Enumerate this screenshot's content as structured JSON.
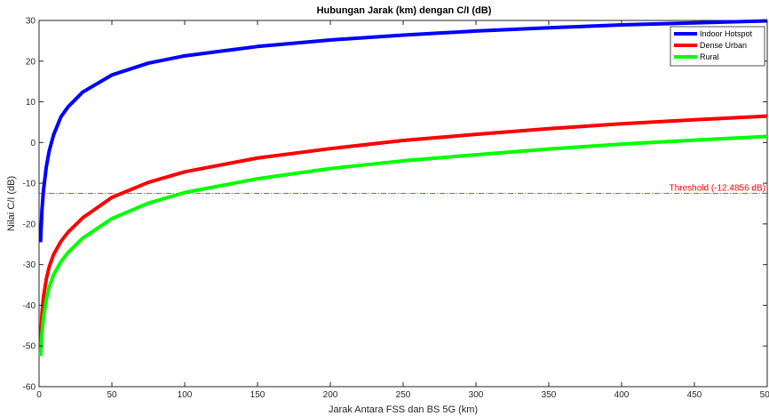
{
  "chart_data": {
    "type": "line",
    "title": "Hubungan Jarak (km) dengan C/I (dB)",
    "xlabel": "Jarak Antara FSS dan BS 5G (km)",
    "ylabel": "Nilai C/I (dB)",
    "xlim": [
      0,
      500
    ],
    "ylim": [
      -60,
      30
    ],
    "xticks": [
      0,
      50,
      100,
      150,
      200,
      250,
      300,
      350,
      400,
      450,
      500
    ],
    "yticks": [
      -60,
      -50,
      -40,
      -30,
      -20,
      -10,
      0,
      10,
      20,
      30
    ],
    "grid": false,
    "legend_position": "top-right",
    "series": [
      {
        "name": "Indoor Hotspot",
        "color": "#0000ff",
        "x": [
          1,
          2,
          3,
          5,
          7,
          10,
          15,
          20,
          30,
          50,
          75,
          100,
          150,
          200,
          250,
          300,
          350,
          400,
          450,
          500
        ],
        "y": [
          -24.5,
          -16.5,
          -11.8,
          -5.9,
          -2.0,
          1.9,
          6.3,
          8.8,
          12.4,
          16.6,
          19.5,
          21.3,
          23.6,
          25.2,
          26.4,
          27.4,
          28.2,
          28.9,
          29.4,
          29.9
        ]
      },
      {
        "name": "Dense Urban",
        "color": "#ff0000",
        "x": [
          1,
          2,
          3,
          5,
          7,
          10,
          15,
          20,
          30,
          50,
          75,
          100,
          150,
          200,
          250,
          300,
          350,
          400,
          450,
          500
        ],
        "y": [
          -49.5,
          -42.0,
          -38.0,
          -33.5,
          -30.5,
          -27.5,
          -24.3,
          -22.0,
          -18.5,
          -13.5,
          -9.8,
          -7.2,
          -3.8,
          -1.5,
          0.5,
          2.0,
          3.4,
          4.6,
          5.6,
          6.5
        ]
      },
      {
        "name": "Rural",
        "color": "#00ff00",
        "x": [
          1,
          2,
          3,
          5,
          7,
          10,
          15,
          20,
          30,
          50,
          75,
          100,
          150,
          200,
          250,
          300,
          350,
          400,
          450,
          500
        ],
        "y": [
          -52.5,
          -47.0,
          -43.0,
          -38.5,
          -35.5,
          -32.5,
          -29.3,
          -27.0,
          -23.5,
          -18.7,
          -14.9,
          -12.3,
          -8.9,
          -6.4,
          -4.5,
          -3.0,
          -1.6,
          -0.4,
          0.6,
          1.5
        ]
      }
    ],
    "threshold": {
      "value": -12.4856,
      "label": "Threshold (-12.4856 dB)",
      "color": "#ff0000"
    }
  }
}
